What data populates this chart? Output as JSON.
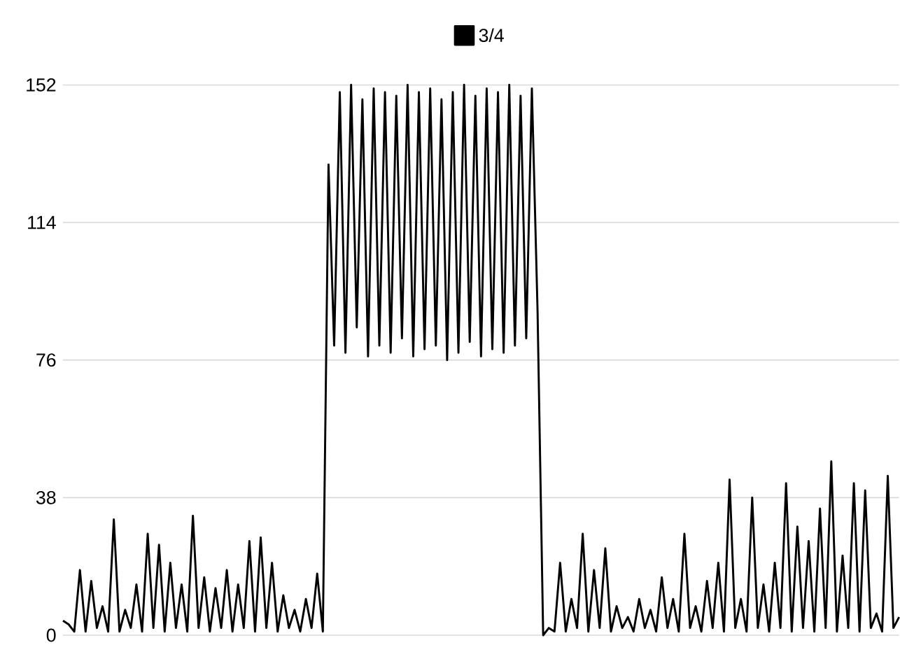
{
  "chart_data": {
    "type": "line",
    "categories": [
      null,
      null,
      null,
      null,
      null,
      null,
      null,
      null,
      null,
      null,
      null,
      null,
      null,
      null,
      null,
      null,
      null,
      null,
      null,
      null,
      null,
      null,
      null,
      null,
      null,
      null,
      null,
      null,
      null,
      null,
      null,
      null,
      null,
      null,
      null,
      null,
      null,
      null,
      null,
      null,
      null,
      null,
      null,
      null,
      null,
      null,
      null,
      null,
      null,
      null,
      null,
      null,
      null,
      null,
      null,
      null,
      null,
      null,
      null,
      null,
      null,
      null,
      null,
      null,
      null,
      null,
      null,
      null,
      null,
      null,
      null,
      null,
      null,
      null,
      null,
      null,
      null,
      null,
      null,
      null,
      null,
      null,
      null,
      null,
      null,
      null,
      null,
      null,
      null,
      null,
      null,
      null,
      null,
      null,
      null,
      null,
      null,
      null,
      null,
      null,
      null,
      null,
      null,
      null,
      null,
      null,
      null,
      null,
      null,
      null,
      null,
      null,
      null,
      null,
      null,
      null,
      null,
      null,
      null,
      null,
      null,
      null,
      null,
      null,
      null,
      null,
      null,
      null,
      null,
      null,
      null,
      null,
      null,
      null,
      null,
      null,
      null,
      null,
      null,
      null,
      null,
      null,
      null,
      null,
      null,
      null,
      null,
      null,
      null
    ],
    "series": [
      {
        "name": "3/4",
        "color": "#000000",
        "values": [
          4,
          3,
          1,
          18,
          1,
          15,
          2,
          8,
          1,
          32,
          1,
          7,
          2,
          14,
          1,
          28,
          2,
          25,
          1,
          20,
          2,
          14,
          1,
          33,
          2,
          16,
          1,
          13,
          2,
          18,
          1,
          14,
          2,
          26,
          1,
          27,
          2,
          20,
          1,
          11,
          2,
          7,
          1,
          10,
          2,
          17,
          1,
          130,
          80,
          150,
          78,
          152,
          85,
          148,
          77,
          151,
          80,
          150,
          78,
          149,
          82,
          152,
          77,
          150,
          79,
          151,
          80,
          148,
          76,
          150,
          78,
          152,
          81,
          149,
          77,
          151,
          79,
          150,
          78,
          152,
          80,
          149,
          82,
          151,
          90,
          0,
          2,
          1,
          20,
          1,
          10,
          2,
          28,
          1,
          18,
          2,
          24,
          1,
          8,
          2,
          5,
          1,
          10,
          2,
          7,
          1,
          16,
          2,
          10,
          1,
          28,
          2,
          8,
          1,
          15,
          2,
          20,
          1,
          43,
          2,
          10,
          1,
          38,
          2,
          14,
          1,
          20,
          2,
          42,
          1,
          30,
          2,
          26,
          1,
          35,
          2,
          48,
          1,
          22,
          2,
          42,
          1,
          40,
          2,
          6,
          1,
          44,
          2,
          5
        ]
      }
    ],
    "ylim": [
      0,
      152
    ],
    "yticks": [
      0,
      38,
      76,
      114,
      152
    ],
    "grid": "y",
    "legend": "top",
    "marker": "none",
    "line_style": "solid"
  }
}
